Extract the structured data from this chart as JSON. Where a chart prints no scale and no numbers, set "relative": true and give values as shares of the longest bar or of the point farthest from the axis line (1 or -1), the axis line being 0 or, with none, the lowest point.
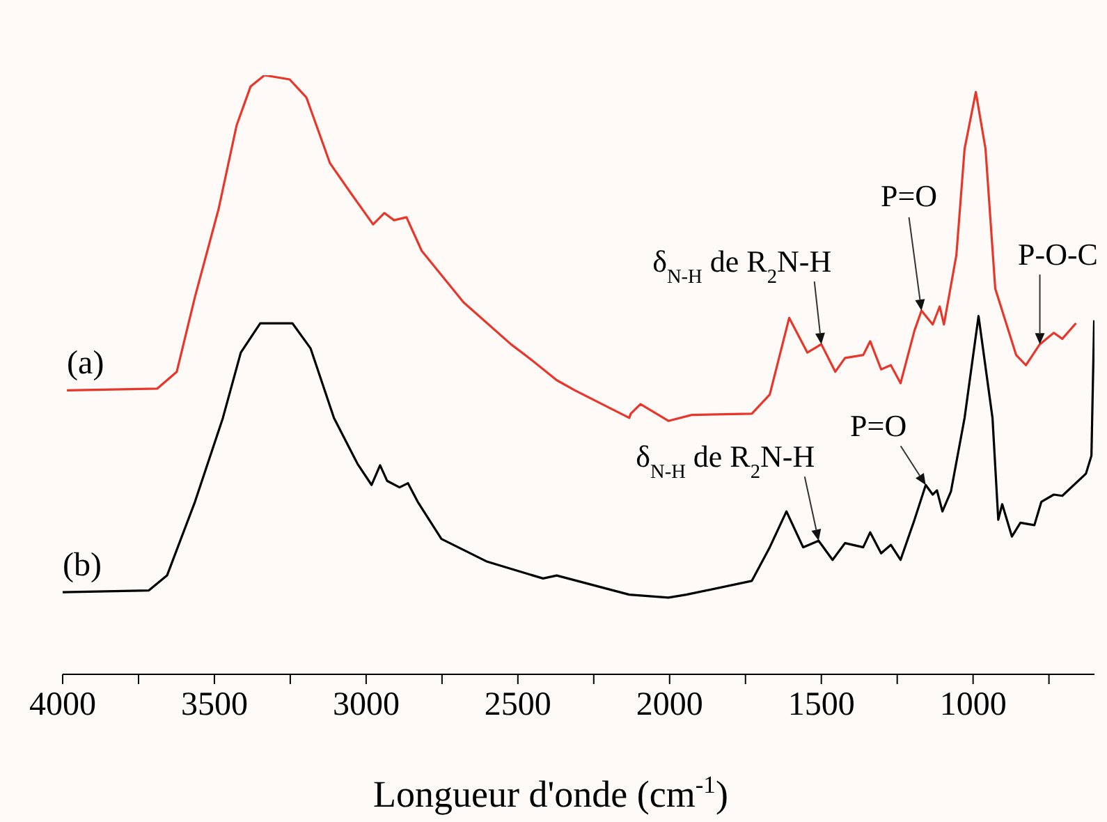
{
  "chart_data": {
    "type": "line",
    "relative": true,
    "xlabel": "Longueur d'onde (cm$^{-1}$)",
    "xlim": [
      4000,
      600
    ],
    "xticks": [
      4000,
      {
        "value": 3750,
        "label": null
      },
      3500,
      {
        "value": 3250,
        "label": null
      },
      3000,
      {
        "value": 2750,
        "label": null
      },
      2500,
      {
        "value": 2250,
        "label": null
      },
      2000,
      {
        "value": 1750,
        "label": null
      },
      1500,
      {
        "value": 1250,
        "label": null
      },
      1000,
      {
        "value": 750,
        "label": null
      }
    ],
    "grid": false,
    "legend": false,
    "marker": "none",
    "line_style": "solid",
    "series": [
      {
        "name": "(a)",
        "color": "#e8372a",
        "x": [
          3986,
          3688,
          3624,
          3564,
          3486,
          3427,
          3381,
          3335,
          3252,
          3197,
          3119,
          3046,
          2977,
          2940,
          2908,
          2867,
          2817,
          2679,
          2523,
          2463,
          2372,
          2312,
          2133,
          2128,
          2096,
          2004,
          1927,
          1729,
          1670,
          1606,
          1546,
          1500,
          1454,
          1422,
          1362,
          1339,
          1303,
          1271,
          1239,
          1193,
          1170,
          1133,
          1110,
          1096,
          1055,
          1028,
          991,
          959,
          927,
          858,
          826,
          780,
          734,
          706,
          661
        ],
        "values": [
          0.474,
          0.477,
          0.505,
          0.63,
          0.777,
          0.916,
          0.981,
          1.0,
          0.993,
          0.963,
          0.853,
          0.8,
          0.751,
          0.77,
          0.758,
          0.763,
          0.707,
          0.621,
          0.551,
          0.528,
          0.491,
          0.474,
          0.428,
          0.435,
          0.451,
          0.423,
          0.433,
          0.435,
          0.467,
          0.595,
          0.537,
          0.551,
          0.505,
          0.528,
          0.533,
          0.556,
          0.509,
          0.516,
          0.486,
          0.574,
          0.607,
          0.584,
          0.614,
          0.584,
          0.7,
          0.877,
          0.972,
          0.877,
          0.644,
          0.533,
          0.516,
          0.551,
          0.57,
          0.56,
          0.586
        ]
      },
      {
        "name": "(b)",
        "color": "#000000",
        "x": [
          4000,
          3716,
          3656,
          3564,
          3472,
          3413,
          3349,
          3243,
          3183,
          3106,
          3028,
          2982,
          2954,
          2931,
          2890,
          2862,
          2830,
          2752,
          2601,
          2417,
          2372,
          2133,
          2004,
          1945,
          1729,
          1670,
          1615,
          1560,
          1509,
          1463,
          1422,
          1362,
          1339,
          1303,
          1271,
          1239,
          1193,
          1156,
          1133,
          1119,
          1101,
          1073,
          1028,
          982,
          936,
          917,
          904,
          872,
          844,
          798,
          775,
          734,
          706,
          628,
          610,
          601
        ],
        "values": [
          0.137,
          0.14,
          0.165,
          0.288,
          0.428,
          0.537,
          0.586,
          0.586,
          0.544,
          0.428,
          0.351,
          0.316,
          0.349,
          0.323,
          0.312,
          0.319,
          0.288,
          0.226,
          0.188,
          0.16,
          0.165,
          0.133,
          0.128,
          0.133,
          0.156,
          0.212,
          0.272,
          0.212,
          0.223,
          0.191,
          0.219,
          0.212,
          0.237,
          0.202,
          0.216,
          0.191,
          0.258,
          0.316,
          0.3,
          0.307,
          0.272,
          0.305,
          0.428,
          0.598,
          0.428,
          0.258,
          0.284,
          0.23,
          0.253,
          0.249,
          0.288,
          0.3,
          0.298,
          0.335,
          0.365,
          0.591
        ]
      }
    ],
    "annotations": [
      {
        "text": "δ$_{N-H}$ de R$_{2}$N-H",
        "x": 1500,
        "y": 0.551
      },
      {
        "text": "P=O",
        "x": 1170,
        "y": 0.607
      },
      {
        "text": "P-O-C",
        "x": 780,
        "y": 0.551
      },
      {
        "text": "δ$_{N-H}$ de R$_{2}$N-H",
        "x": 1509,
        "y": 0.223
      },
      {
        "text": "P=O",
        "x": 1156,
        "y": 0.316
      }
    ]
  }
}
